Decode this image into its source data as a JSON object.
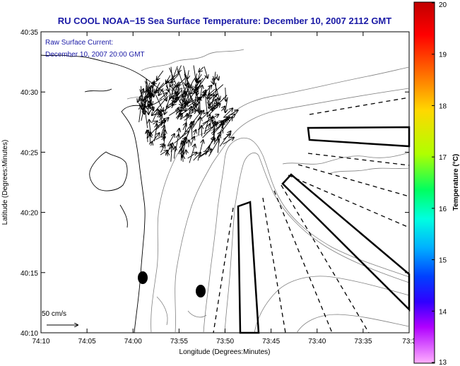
{
  "title": "RU COOL  NOAA−15  Sea Surface Temperature:  December 10, 2007 2112 GMT",
  "annotation": {
    "line1": "Raw Surface Current:",
    "line2": "December 10, 2007 20:00 GMT"
  },
  "scale_label": "50 cm/s",
  "x_axis": {
    "label": "Longitude (Degrees:Minutes)",
    "ticks": [
      "74:10",
      "74:05",
      "74:00",
      "73:55",
      "73:50",
      "73:45",
      "73:40",
      "73:35",
      "73:3"
    ]
  },
  "y_axis": {
    "label": "Latitude (Degrees:Minutes)",
    "ticks": [
      "40:35",
      "40:30",
      "40:25",
      "40:20",
      "40:15",
      "40:10"
    ]
  },
  "colorbar": {
    "label": "Temperature (°C)",
    "ticks": [
      "20",
      "19",
      "18",
      "17",
      "16",
      "15",
      "14",
      "13"
    ],
    "colors": [
      "#c00000",
      "#ff0000",
      "#ff8000",
      "#ffd000",
      "#c0ff00",
      "#00ff60",
      "#00ffd0",
      "#00b0ff",
      "#0040ff",
      "#4000ff",
      "#c000ff",
      "#ff80ff"
    ]
  }
}
